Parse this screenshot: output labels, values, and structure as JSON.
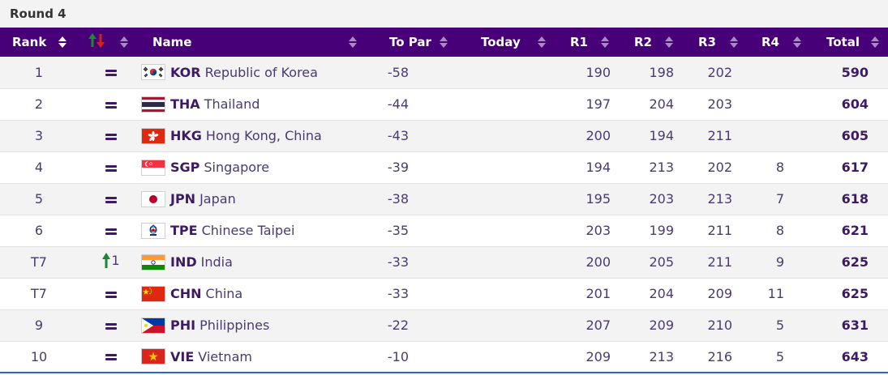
{
  "round_label": "Round 4",
  "columns": {
    "rank": "Rank",
    "name": "Name",
    "to_par": "To Par",
    "today": "Today",
    "r1": "R1",
    "r2": "R2",
    "r3": "R3",
    "r4": "R4",
    "total": "Total"
  },
  "colors": {
    "header_bg": "#480079",
    "accent_text": "#3d1a66",
    "move_up": "#1a8a2e",
    "move_down": "#d62020"
  },
  "rows": [
    {
      "rank": "1",
      "move": "=",
      "code": "KOR",
      "name": "Republic of Korea",
      "flag": "kor-flag",
      "to_par": "-58",
      "today": "",
      "r1": "190",
      "r2": "198",
      "r3": "202",
      "r4": "",
      "total": "590"
    },
    {
      "rank": "2",
      "move": "=",
      "code": "THA",
      "name": "Thailand",
      "flag": "tha-flag",
      "to_par": "-44",
      "today": "",
      "r1": "197",
      "r2": "204",
      "r3": "203",
      "r4": "",
      "total": "604"
    },
    {
      "rank": "3",
      "move": "=",
      "code": "HKG",
      "name": "Hong Kong, China",
      "flag": "hkg-flag",
      "to_par": "-43",
      "today": "",
      "r1": "200",
      "r2": "194",
      "r3": "211",
      "r4": "",
      "total": "605"
    },
    {
      "rank": "4",
      "move": "=",
      "code": "SGP",
      "name": "Singapore",
      "flag": "sgp-flag",
      "to_par": "-39",
      "today": "",
      "r1": "194",
      "r2": "213",
      "r3": "202",
      "r4": "8",
      "total": "617"
    },
    {
      "rank": "5",
      "move": "=",
      "code": "JPN",
      "name": "Japan",
      "flag": "jpn-flag",
      "to_par": "-38",
      "today": "",
      "r1": "195",
      "r2": "203",
      "r3": "213",
      "r4": "7",
      "total": "618"
    },
    {
      "rank": "6",
      "move": "=",
      "code": "TPE",
      "name": "Chinese Taipei",
      "flag": "tpe-flag",
      "to_par": "-35",
      "today": "",
      "r1": "203",
      "r2": "199",
      "r3": "211",
      "r4": "8",
      "total": "621"
    },
    {
      "rank": "T7",
      "move": "up",
      "move_value": "1",
      "code": "IND",
      "name": "India",
      "flag": "ind-flag",
      "to_par": "-33",
      "today": "",
      "r1": "200",
      "r2": "205",
      "r3": "211",
      "r4": "9",
      "total": "625"
    },
    {
      "rank": "T7",
      "move": "=",
      "code": "CHN",
      "name": "China",
      "flag": "chn-flag",
      "to_par": "-33",
      "today": "",
      "r1": "201",
      "r2": "204",
      "r3": "209",
      "r4": "11",
      "total": "625"
    },
    {
      "rank": "9",
      "move": "=",
      "code": "PHI",
      "name": "Philippines",
      "flag": "phi-flag",
      "to_par": "-22",
      "today": "",
      "r1": "207",
      "r2": "209",
      "r3": "210",
      "r4": "5",
      "total": "631"
    },
    {
      "rank": "10",
      "move": "=",
      "code": "VIE",
      "name": "Vietnam",
      "flag": "vie-flag",
      "to_par": "-10",
      "today": "",
      "r1": "209",
      "r2": "213",
      "r3": "216",
      "r4": "5",
      "total": "643"
    }
  ]
}
